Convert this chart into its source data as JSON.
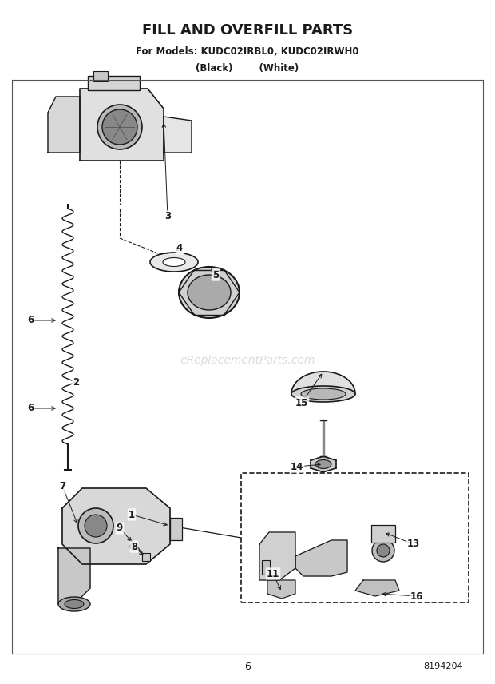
{
  "title": "FILL AND OVERFILL PARTS",
  "subtitle1": "For Models: KUDC02IRBL0, KUDC02IRWH0",
  "subtitle2": "(Black)        (White)",
  "page_number": "6",
  "doc_number": "8194204",
  "watermark": "eReplacementParts.com",
  "background_color": "#ffffff",
  "line_color": "#1a1a1a"
}
